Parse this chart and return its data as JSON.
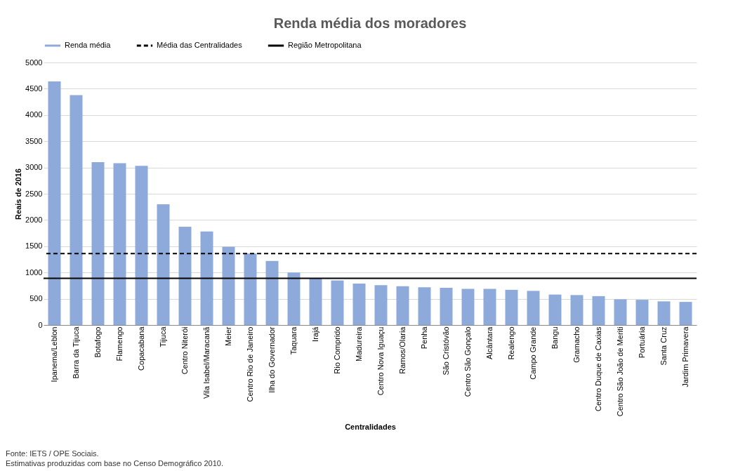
{
  "chart_data": {
    "type": "bar",
    "title": "Renda média dos moradores",
    "xlabel": "Centralidades",
    "ylabel": "Reais de 2016",
    "categories": [
      "Ipanema/Leblon",
      "Barra da Tijuca",
      "Botafogo",
      "Flamengo",
      "Copacabana",
      "Tijuca",
      "Centro Niterói",
      "Vila Isabel/Maracanã",
      "Meier",
      "Centro Rio de Janeiro",
      "Ilha do Governador",
      "Taquara",
      "Irajá",
      "Rio Comprido",
      "Madureira",
      "Centro Nova Iguaçu",
      "Ramos/Olaria",
      "Penha",
      "São Cristóvão",
      "Centro São Gonçalo",
      "Alcântara",
      "Realengo",
      "Campo Grande",
      "Bangu",
      "Gramacho",
      "Centro Duque de Caxias",
      "Centro São João de Meriti",
      "Portuária",
      "Santa Cruz",
      "Jardim Primavera"
    ],
    "series": [
      {
        "name": "Renda média",
        "color": "#8eaadb",
        "values": [
          4640,
          4380,
          3100,
          3080,
          3030,
          2300,
          1870,
          1780,
          1490,
          1360,
          1220,
          1000,
          890,
          850,
          790,
          760,
          740,
          720,
          710,
          690,
          690,
          670,
          650,
          580,
          570,
          550,
          490,
          480,
          450,
          440
        ]
      }
    ],
    "ref_lines": [
      {
        "axis": "y",
        "value": 1360,
        "label": "Média das Centralidades",
        "color": "#000000",
        "line_style": "dashed"
      },
      {
        "axis": "y",
        "value": 890,
        "label": "Região Metropolitana",
        "color": "#000000",
        "line_style": "solid"
      }
    ],
    "ylim": [
      0,
      5000
    ],
    "yticks": [
      0,
      500,
      1000,
      1500,
      2000,
      2500,
      3000,
      3500,
      4000,
      4500,
      5000
    ],
    "grid": "y",
    "legend": "top",
    "annotations": [
      "Fonte: IETS / OPE Sociais.",
      "Estimativas produzidas com base no Censo Demográfico 2010."
    ]
  }
}
